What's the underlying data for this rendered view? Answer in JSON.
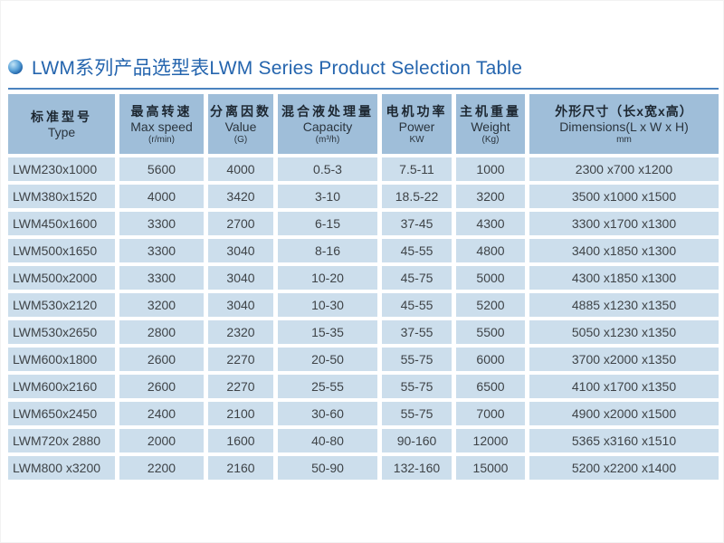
{
  "page": {
    "title": "LWM系列产品选型表LWM Series Product Selection Table"
  },
  "colors": {
    "title_blue": "#2565ae",
    "divider_blue": "#4b83bf",
    "header_cell_bg": "#9fbed9",
    "data_cell_bg": "#ccdeec",
    "text_dark": "#3e4347"
  },
  "icons": {
    "bullet": "blue-orb-bullet"
  },
  "table": {
    "columns": [
      {
        "zh": "标准型号",
        "en": "Type",
        "unit": ""
      },
      {
        "zh": "最高转速",
        "en": "Max speed",
        "unit": "(r/min)"
      },
      {
        "zh": "分离因数",
        "en": "Value",
        "unit": "(G)"
      },
      {
        "zh": "混合液处理量",
        "en": "Capacity",
        "unit": "(m³/h)"
      },
      {
        "zh": "电机功率",
        "en": "Power",
        "unit": "KW"
      },
      {
        "zh": "主机重量",
        "en": "Weight",
        "unit": "(Kg)"
      },
      {
        "zh": "外形尺寸（长x宽x高）",
        "en": "Dimensions(L x W x H)",
        "unit": "mm"
      }
    ],
    "rows": [
      [
        "LWM230x1000",
        "5600",
        "4000",
        "0.5-3",
        "7.5-11",
        "1000",
        "2300 x700 x1200"
      ],
      [
        "LWM380x1520",
        "4000",
        "3420",
        "3-10",
        "18.5-22",
        "3200",
        "3500 x1000 x1500"
      ],
      [
        "LWM450x1600",
        "3300",
        "2700",
        "6-15",
        "37-45",
        "4300",
        "3300 x1700 x1300"
      ],
      [
        "LWM500x1650",
        "3300",
        "3040",
        "8-16",
        "45-55",
        "4800",
        "3400 x1850 x1300"
      ],
      [
        "LWM500x2000",
        "3300",
        "3040",
        "10-20",
        "45-75",
        "5000",
        "4300 x1850 x1300"
      ],
      [
        "LWM530x2120",
        "3200",
        "3040",
        "10-30",
        "45-55",
        "5200",
        "4885 x1230 x1350"
      ],
      [
        "LWM530x2650",
        "2800",
        "2320",
        "15-35",
        "37-55",
        "5500",
        "5050 x1230 x1350"
      ],
      [
        "LWM600x1800",
        "2600",
        "2270",
        "20-50",
        "55-75",
        "6000",
        "3700 x2000 x1350"
      ],
      [
        "LWM600x2160",
        "2600",
        "2270",
        "25-55",
        "55-75",
        "6500",
        "4100 x1700 x1350"
      ],
      [
        "LWM650x2450",
        "2400",
        "2100",
        "30-60",
        "55-75",
        "7000",
        "4900 x2000 x1500"
      ],
      [
        "LWM720x 2880",
        "2000",
        "1600",
        "40-80",
        "90-160",
        "12000",
        "5365 x3160 x1510"
      ],
      [
        "LWM800 x3200",
        "2200",
        "2160",
        "50-90",
        "132-160",
        "15000",
        "5200 x2200 x1400"
      ]
    ]
  }
}
